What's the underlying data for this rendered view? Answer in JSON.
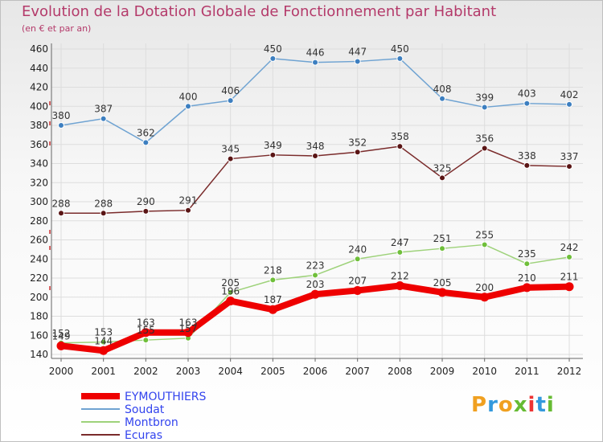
{
  "chart_data": {
    "type": "line",
    "title": "Evolution de la Dotation Globale de Fonctionnement par Habitant",
    "subtitle": "(en € et par an)",
    "x": [
      "2000",
      "2001",
      "2002",
      "2003",
      "2004",
      "2005",
      "2006",
      "2007",
      "2008",
      "2009",
      "2010",
      "2011",
      "2012"
    ],
    "yticks": [
      140,
      160,
      180,
      200,
      220,
      240,
      260,
      280,
      300,
      320,
      340,
      360,
      380,
      400,
      420,
      440,
      460
    ],
    "ylim": [
      140,
      465
    ],
    "series": [
      {
        "name": "Soudat",
        "color": "#6fa3d2",
        "marker": "#3d7fc0",
        "width": 1.5,
        "show_labels": true,
        "values": [
          380,
          387,
          362,
          400,
          406,
          450,
          446,
          447,
          450,
          408,
          399,
          403,
          402
        ]
      },
      {
        "name": "Ecuras",
        "color": "#7a2b2b",
        "marker": "#5a1515",
        "width": 1.5,
        "show_labels": true,
        "values": [
          288,
          288,
          290,
          291,
          345,
          349,
          348,
          352,
          358,
          325,
          356,
          338,
          337
        ]
      },
      {
        "name": "Montbron",
        "color": "#9ed27a",
        "marker": "#6fbf3a",
        "width": 1.5,
        "show_labels": true,
        "values": [
          152,
          153,
          155,
          157,
          205,
          218,
          223,
          240,
          247,
          251,
          255,
          235,
          242
        ]
      },
      {
        "name": "EYMOUTHIERS",
        "color": "#ee0000",
        "marker": "#ee0000",
        "width": 8,
        "show_labels": true,
        "values": [
          149,
          144,
          163,
          163,
          196,
          187,
          203,
          207,
          212,
          205,
          200,
          210,
          211
        ]
      }
    ],
    "legend": [
      {
        "name": "EYMOUTHIERS",
        "color": "#ee0000",
        "text_color": "#3344ee"
      },
      {
        "name": "Soudat",
        "color": "#6fa3d2",
        "text_color": "#3344ee"
      },
      {
        "name": "Montbron",
        "color": "#9ed27a",
        "text_color": "#3344ee"
      },
      {
        "name": "Ecuras",
        "color": "#7a2b2b",
        "text_color": "#3344ee"
      }
    ]
  },
  "logo": {
    "text": "Proxiti"
  }
}
